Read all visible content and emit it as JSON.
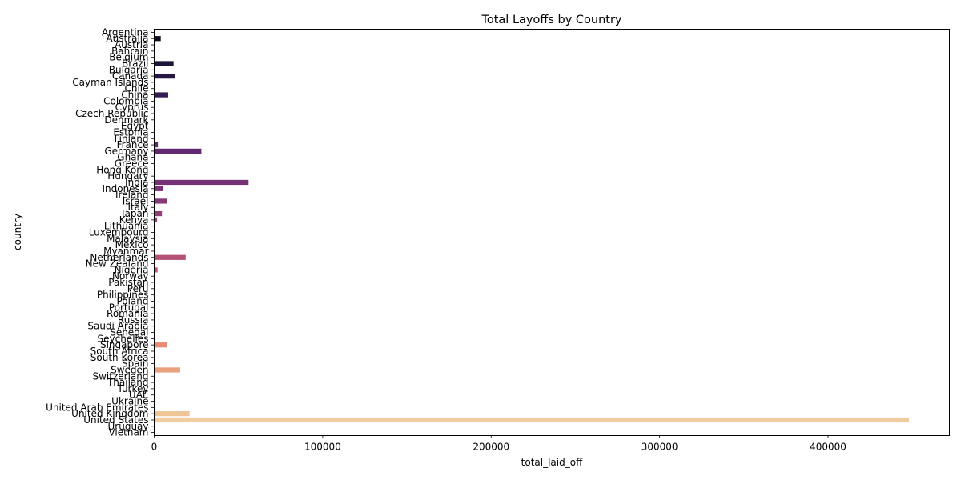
{
  "chart_data": {
    "type": "bar",
    "orientation": "horizontal",
    "title": "Total Layoffs by Country",
    "xlabel": "total_laid_off",
    "ylabel": "country",
    "xlim": [
      0,
      472000
    ],
    "xticks": [
      0,
      100000,
      200000,
      300000,
      400000
    ],
    "grid": false,
    "categories": [
      "Argentina",
      "Australia",
      "Austria",
      "Bahrain",
      "Belgium",
      "Brazil",
      "Bulgaria",
      "Canada",
      "Cayman Islands",
      "Chile",
      "China",
      "Colombia",
      "Cyprus",
      "Czech Republic",
      "Denmark",
      "Egypt",
      "Estonia",
      "Finland",
      "France",
      "Germany",
      "Ghana",
      "Greece",
      "Hong Kong",
      "Hungary",
      "India",
      "Indonesia",
      "Ireland",
      "Israel",
      "Italy",
      "Japan",
      "Kenya",
      "Lithuania",
      "Luxembourg",
      "Malaysia",
      "Mexico",
      "Myanmar",
      "Netherlands",
      "New Zealand",
      "Nigeria",
      "Norway",
      "Pakistan",
      "Peru",
      "Philippines",
      "Poland",
      "Portugal",
      "Romania",
      "Russia",
      "Saudi Arabia",
      "Senegal",
      "Seychelles",
      "Singapore",
      "South Africa",
      "South Korea",
      "Spain",
      "Sweden",
      "Switzerland",
      "Thailand",
      "Turkey",
      "UAE",
      "Ukraine",
      "United Arab Emirates",
      "United Kingdom",
      "United States",
      "Uruguay",
      "Vietnam"
    ],
    "values": [
      0,
      3900,
      0,
      0,
      0,
      11500,
      0,
      12500,
      0,
      0,
      8300,
      0,
      0,
      0,
      0,
      0,
      0,
      0,
      2200,
      28000,
      0,
      0,
      0,
      0,
      56000,
      5500,
      0,
      7600,
      0,
      4600,
      1700,
      0,
      0,
      0,
      0,
      0,
      18700,
      0,
      2000,
      0,
      0,
      0,
      0,
      0,
      0,
      0,
      0,
      0,
      0,
      0,
      7800,
      0,
      0,
      0,
      15400,
      0,
      0,
      0,
      0,
      0,
      0,
      21000,
      448000,
      0,
      0
    ]
  }
}
